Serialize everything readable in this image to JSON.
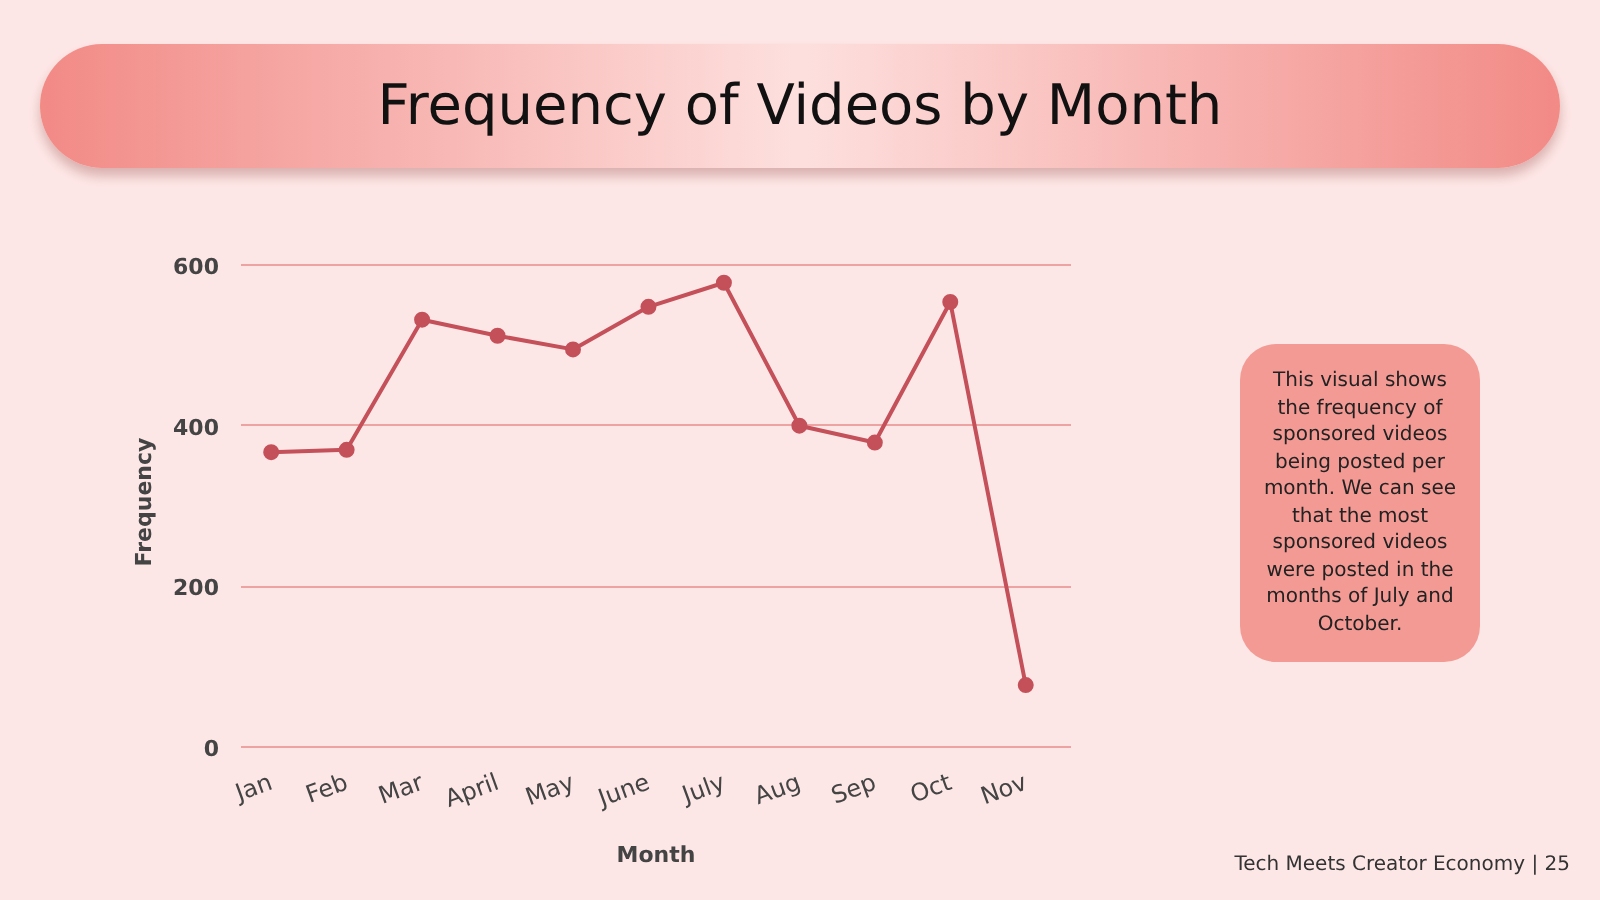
{
  "chart_data": {
    "type": "line",
    "title": "Frequency of Videos by Month",
    "xlabel": "Month",
    "ylabel": "Frequency",
    "categories": [
      "Jan",
      "Feb",
      "Mar",
      "April",
      "May",
      "June",
      "July",
      "Aug",
      "Sep",
      "Oct",
      "Nov"
    ],
    "series": [
      {
        "color": "#c4505a",
        "values": [
          367,
          370,
          532,
          512,
          495,
          548,
          578,
          400,
          379,
          554,
          77
        ]
      }
    ],
    "ylim": [
      0,
      600
    ],
    "yticks": [
      0,
      200,
      400,
      600
    ],
    "grid": "y",
    "marker": "circle",
    "line_style": "solid",
    "annotations": [
      "This visual shows the frequency of sponsored videos being posted per month. We can see that the most sponsored videos were posted in the months of July and October.",
      "Tech Meets Creator Economy | 25"
    ]
  }
}
